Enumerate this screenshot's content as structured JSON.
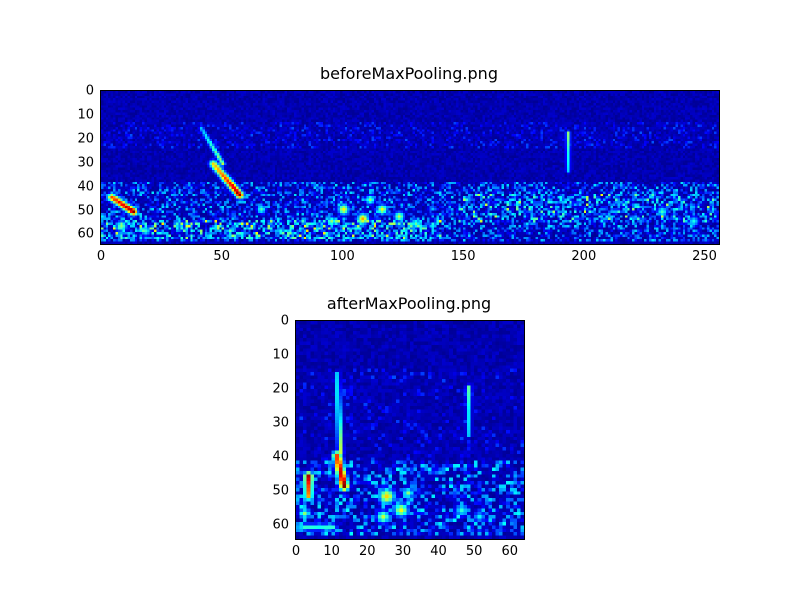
{
  "page": {
    "background": "#ffffff"
  },
  "chart_data": [
    {
      "type": "heatmap",
      "title": "beforeMaxPooling.png",
      "xlabel": "",
      "ylabel": "",
      "xlim": [
        0,
        256
      ],
      "ylim": [
        0,
        64
      ],
      "xticks": [
        0,
        50,
        100,
        150,
        200,
        250
      ],
      "yticks": [
        0,
        10,
        20,
        30,
        40,
        50,
        60
      ],
      "grid_cols": 256,
      "grid_rows": 64,
      "colormap": "jet",
      "background_value": 0.02,
      "seed": 7,
      "noise_bands": [
        {
          "y0": 0,
          "y1": 63,
          "density": 0.9,
          "intensity": 0.05
        },
        {
          "y0": 13,
          "y1": 23,
          "density": 0.28,
          "intensity": 0.13
        },
        {
          "y0": 38,
          "y1": 62,
          "density": 0.5,
          "intensity": 0.28
        },
        {
          "y0": 54,
          "y1": 61,
          "x0": 0,
          "x1": 140,
          "density": 0.55,
          "intensity": 0.35
        },
        {
          "y0": 43,
          "y1": 54,
          "x0": 148,
          "x1": 255,
          "density": 0.35,
          "intensity": 0.3
        }
      ],
      "features": [
        {
          "x0": 41,
          "y0": 15,
          "x1": 50,
          "y1": 30,
          "i0": 0.3,
          "i1": 0.55,
          "r": 1.0
        },
        {
          "x0": 46,
          "y0": 30,
          "x1": 57,
          "y1": 43,
          "i0": 0.65,
          "i1": 1.0,
          "r": 1.6
        },
        {
          "x0": 4,
          "y0": 44,
          "x1": 13,
          "y1": 50,
          "i0": 0.8,
          "i1": 1.0,
          "r": 1.6
        },
        {
          "x": 8,
          "y": 56,
          "i": 0.5,
          "r": 2.2
        },
        {
          "x": 18,
          "y": 58,
          "i": 0.4,
          "r": 2.0
        },
        {
          "x": 100,
          "y": 49,
          "i": 0.62,
          "r": 2.2
        },
        {
          "x": 108,
          "y": 53,
          "i": 0.7,
          "r": 2.2
        },
        {
          "x": 116,
          "y": 49,
          "i": 0.6,
          "r": 2.0
        },
        {
          "x": 111,
          "y": 45,
          "i": 0.5,
          "r": 1.8
        },
        {
          "x": 123,
          "y": 52,
          "i": 0.55,
          "r": 2.0
        },
        {
          "x": 95,
          "y": 54,
          "i": 0.5,
          "r": 1.8
        },
        {
          "x": 130,
          "y": 55,
          "i": 0.45,
          "r": 2.0
        },
        {
          "x": 66,
          "y": 49,
          "i": 0.45,
          "r": 1.8
        },
        {
          "x0": 193,
          "y0": 17,
          "x1": 193,
          "y1": 33,
          "i0": 0.5,
          "i1": 0.32,
          "r": 0.9
        },
        {
          "x": 232,
          "y": 50,
          "i": 0.42,
          "r": 2.0
        },
        {
          "x": 245,
          "y": 54,
          "i": 0.38,
          "r": 2.0
        }
      ]
    },
    {
      "type": "heatmap",
      "title": "afterMaxPooling.png",
      "xlabel": "",
      "ylabel": "",
      "xlim": [
        0,
        64
      ],
      "ylim": [
        0,
        64
      ],
      "xticks": [
        0,
        10,
        20,
        30,
        40,
        50,
        60
      ],
      "yticks": [
        0,
        10,
        20,
        30,
        40,
        50,
        60
      ],
      "grid_cols": 64,
      "grid_rows": 64,
      "colormap": "jet",
      "background_value": 0.02,
      "seed": 13,
      "noise_bands": [
        {
          "y0": 0,
          "y1": 63,
          "density": 0.9,
          "intensity": 0.05
        },
        {
          "y0": 14,
          "y1": 40,
          "density": 0.15,
          "intensity": 0.12
        },
        {
          "y0": 41,
          "y1": 62,
          "density": 0.5,
          "intensity": 0.3
        }
      ],
      "features": [
        {
          "x0": 11,
          "y0": 15,
          "x1": 12,
          "y1": 38,
          "i0": 0.3,
          "i1": 0.55,
          "r": 0.8
        },
        {
          "x0": 11,
          "y0": 39,
          "x1": 13,
          "y1": 48,
          "i0": 0.8,
          "i1": 1.0,
          "r": 1.3
        },
        {
          "x0": 3,
          "y0": 45,
          "x1": 3,
          "y1": 51,
          "i0": 0.95,
          "i1": 0.7,
          "r": 1.2
        },
        {
          "x": 2,
          "y": 56,
          "i": 0.5,
          "r": 1.5
        },
        {
          "x": 25,
          "y": 51,
          "i": 0.65,
          "r": 2.2
        },
        {
          "x": 29,
          "y": 55,
          "i": 0.6,
          "r": 2.0
        },
        {
          "x": 24,
          "y": 57,
          "i": 0.55,
          "r": 1.8
        },
        {
          "x": 31,
          "y": 50,
          "i": 0.5,
          "r": 1.5
        },
        {
          "x0": 48,
          "y0": 19,
          "x1": 48,
          "y1": 33,
          "i0": 0.45,
          "i1": 0.3,
          "r": 0.8
        },
        {
          "x": 46,
          "y": 55,
          "i": 0.4,
          "r": 1.8
        },
        {
          "x": 51,
          "y": 57,
          "i": 0.35,
          "r": 1.5
        },
        {
          "x0": 2,
          "y0": 60,
          "x1": 10,
          "y1": 60,
          "i0": 0.4,
          "i1": 0.4,
          "r": 1.0
        }
      ]
    }
  ]
}
